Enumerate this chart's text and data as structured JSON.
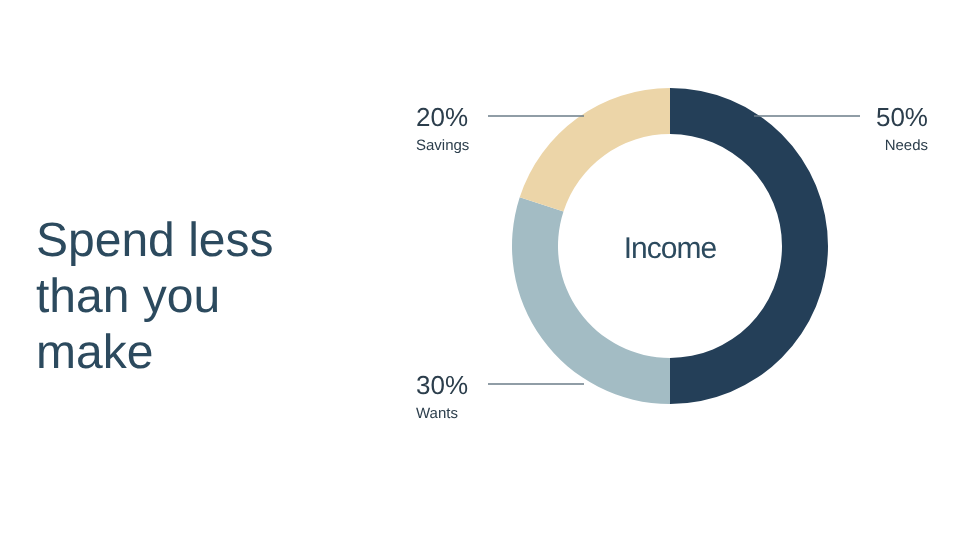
{
  "chart_data": {
    "type": "donut",
    "title": "Spend less than you make",
    "annotations": [
      "Income"
    ],
    "categories": [
      "Needs",
      "Wants",
      "Savings"
    ],
    "values": [
      50,
      30,
      20
    ],
    "colors": [
      "#243f58",
      "#a3bcc4",
      "#ecd5a8"
    ],
    "value_labels": [
      "50%",
      "30%",
      "20%"
    ]
  }
}
